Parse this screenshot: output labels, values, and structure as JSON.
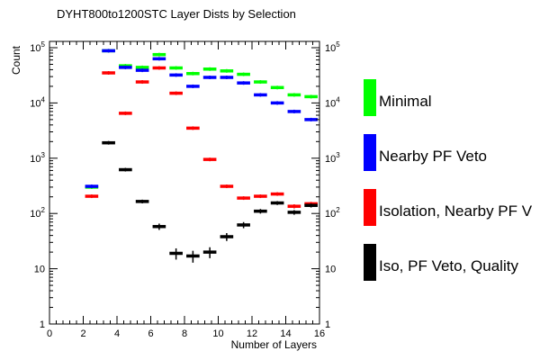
{
  "chart_data": {
    "type": "scatter",
    "title": "DYHT800to1200STC Layer Dists by Selection",
    "xlabel": "Number of Layers",
    "ylabel": "Count",
    "xlim": [
      0,
      16
    ],
    "ylim": [
      1,
      130000
    ],
    "y_scale": "log",
    "grid": false,
    "legend_placement": "right",
    "x_ticks": [
      "0",
      "2",
      "4",
      "6",
      "8",
      "10",
      "12",
      "14",
      "16"
    ],
    "y_ticks": [
      "1",
      "10",
      "10^2",
      "10^3",
      "10^4",
      "10^5"
    ],
    "bin_width": 1,
    "series": [
      {
        "name": "Minimal",
        "color": "#00ff00",
        "x": [
          2.5,
          3.5,
          4.5,
          5.5,
          6.5,
          7.5,
          8.5,
          9.5,
          10.5,
          11.5,
          12.5,
          13.5,
          14.5,
          15.5
        ],
        "values": [
          300,
          88000,
          47000,
          44000,
          75000,
          43000,
          34000,
          41000,
          38000,
          33000,
          24000,
          19000,
          14000,
          13000
        ]
      },
      {
        "name": "Nearby PF Veto",
        "color": "#0000ff",
        "x": [
          2.5,
          3.5,
          4.5,
          5.5,
          6.5,
          7.5,
          8.5,
          9.5,
          10.5,
          11.5,
          12.5,
          13.5,
          14.5,
          15.5
        ],
        "values": [
          310,
          88000,
          44000,
          39000,
          63000,
          32000,
          20000,
          29000,
          29000,
          23000,
          14000,
          10000,
          7000,
          5000
        ]
      },
      {
        "name": "Isolation, Nearby PF V",
        "color": "#ff0000",
        "x": [
          2.5,
          3.5,
          4.5,
          5.5,
          6.5,
          7.5,
          8.5,
          9.5,
          10.5,
          11.5,
          12.5,
          13.5,
          14.5,
          15.5
        ],
        "values": [
          205,
          35000,
          6500,
          24000,
          43000,
          15000,
          3500,
          950,
          310,
          190,
          205,
          225,
          135,
          150
        ]
      },
      {
        "name": "Iso, PF Veto, Quality",
        "color": "#000000",
        "x": [
          3.5,
          4.5,
          5.5,
          6.5,
          7.5,
          8.5,
          9.5,
          10.5,
          11.5,
          12.5,
          13.5,
          14.5,
          15.5
        ],
        "values": [
          1900,
          620,
          165,
          58,
          19,
          17,
          20,
          38,
          62,
          110,
          155,
          105,
          140
        ]
      }
    ]
  }
}
